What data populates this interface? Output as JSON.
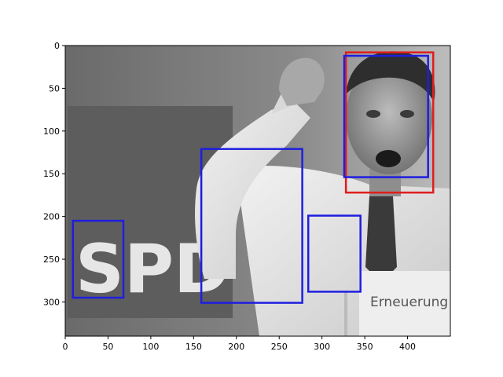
{
  "plot": {
    "x_limits": [
      0,
      450
    ],
    "y_limits": [
      340,
      0
    ],
    "x_ticks": [
      0,
      50,
      100,
      150,
      200,
      250,
      300,
      350,
      400
    ],
    "y_ticks": [
      0,
      50,
      100,
      150,
      200,
      250,
      300
    ]
  },
  "photo": {
    "poster_text": "SPD",
    "podium_text": "Erneuerung",
    "style": "grayscale"
  },
  "boxes": [
    {
      "label": "face-box-red",
      "color": "#e01e1e",
      "x0": 328,
      "y0": 8,
      "x1": 430,
      "y1": 172
    },
    {
      "label": "face-box-blue",
      "color": "#1e1ee0",
      "x0": 326,
      "y0": 12,
      "x1": 424,
      "y1": 154
    },
    {
      "label": "spd-box",
      "color": "#1e1ee0",
      "x0": 9,
      "y0": 205,
      "x1": 68,
      "y1": 295
    },
    {
      "label": "arm-box",
      "color": "#1e1ee0",
      "x0": 159,
      "y0": 121,
      "x1": 277,
      "y1": 301
    },
    {
      "label": "tie-box",
      "color": "#1e1ee0",
      "x0": 284,
      "y0": 199,
      "x1": 345,
      "y1": 288
    }
  ]
}
